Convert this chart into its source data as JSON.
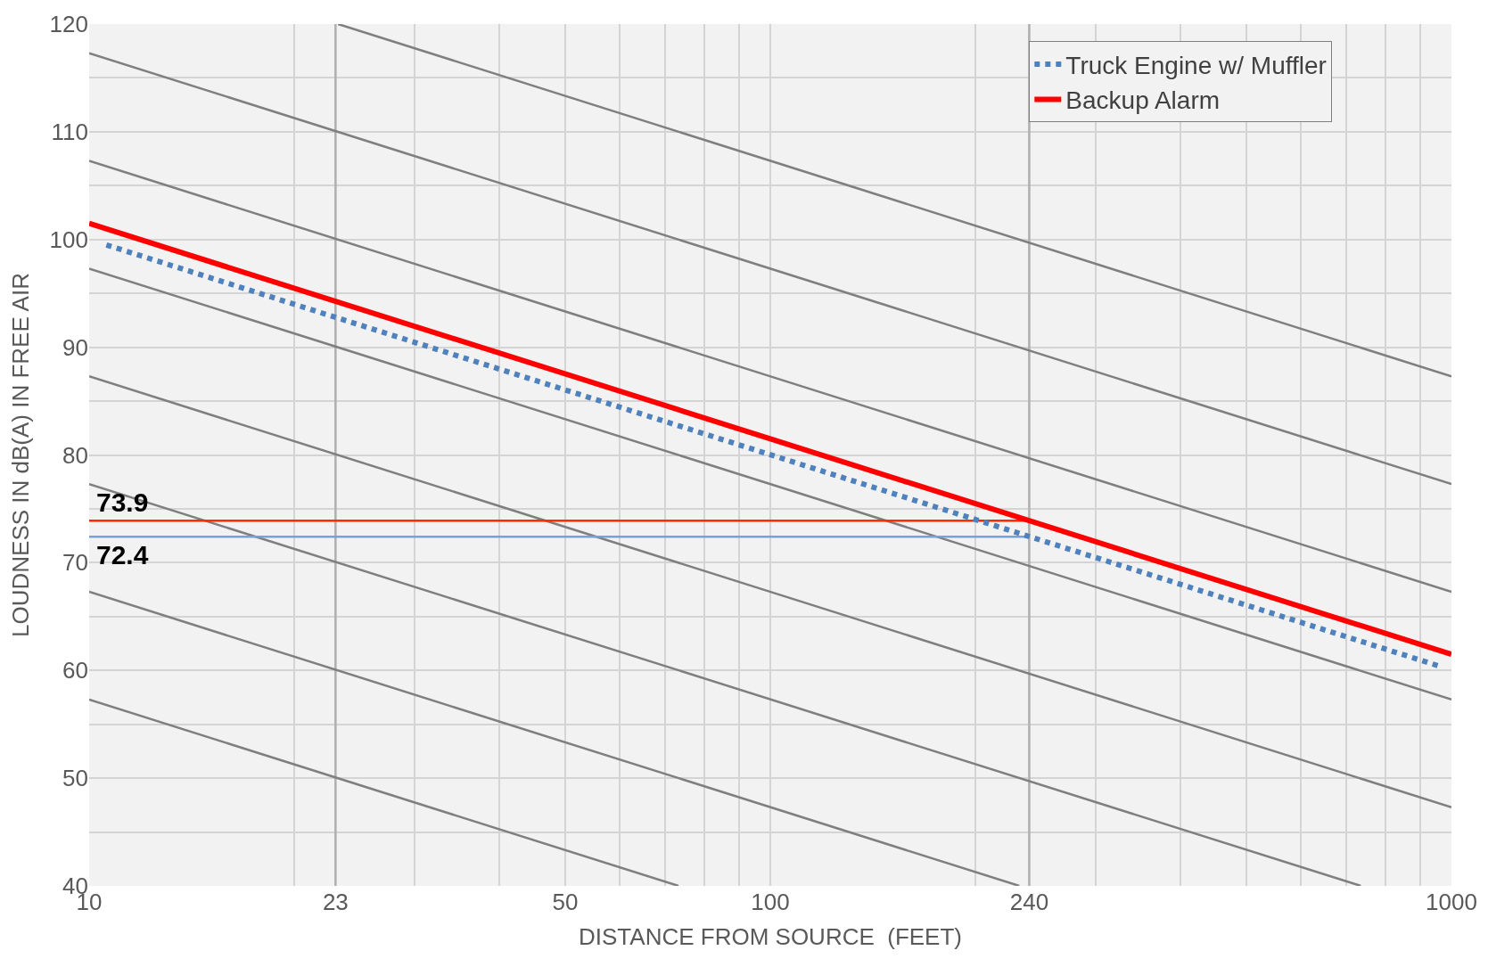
{
  "chart_data": {
    "type": "line",
    "xlabel": "DISTANCE FROM SOURCE  (FEET)",
    "ylabel": "LOUDNESS IN dB(A) IN FREE AIR",
    "log": "x",
    "grid": true,
    "legend": "top right",
    "xlim": [
      10,
      1000
    ],
    "ylim": [
      40,
      120
    ],
    "xticks": [
      10,
      23,
      50,
      100,
      240,
      1000
    ],
    "yticks": [
      40,
      50,
      60,
      70,
      80,
      90,
      100,
      110,
      120
    ],
    "series": [
      {
        "color": "#b0b0b0",
        "x": [
          23,
          23
        ],
        "values": [
          40,
          120
        ]
      },
      {
        "color": "#b0b0b0",
        "x": [
          240,
          240
        ],
        "values": [
          40,
          120
        ]
      },
      {
        "color": "#7f7f7f",
        "x": [
          23.2,
          1000
        ],
        "values": [
          120,
          87.3
        ]
      },
      {
        "color": "#7f7f7f",
        "x": [
          10,
          1000
        ],
        "values": [
          117.3,
          77.3
        ]
      },
      {
        "color": "#7f7f7f",
        "x": [
          10,
          1000
        ],
        "values": [
          107.3,
          67.3
        ]
      },
      {
        "color": "#7f7f7f",
        "x": [
          10,
          1000
        ],
        "values": [
          97.3,
          57.3
        ]
      },
      {
        "color": "#7f7f7f",
        "x": [
          10,
          1000
        ],
        "values": [
          87.3,
          47.3
        ]
      },
      {
        "color": "#7f7f7f",
        "x": [
          10,
          736
        ],
        "values": [
          77.3,
          40
        ]
      },
      {
        "color": "#7f7f7f",
        "x": [
          10,
          232
        ],
        "values": [
          67.3,
          40
        ]
      },
      {
        "color": "#7f7f7f",
        "x": [
          10,
          73.3
        ],
        "values": [
          57.3,
          40
        ]
      },
      {
        "color": "#ff2a00",
        "x": [
          10,
          240
        ],
        "values": [
          73.9,
          73.9
        ]
      },
      {
        "color": "#7aa0d4",
        "x": [
          10,
          240
        ],
        "values": [
          72.4,
          72.4
        ]
      },
      {
        "name": "Truck Engine w/ Muffler",
        "color": "#4f81bd",
        "line_style": "dotted",
        "x": [
          10.6,
          960
        ],
        "values": [
          99.5,
          60.4
        ]
      },
      {
        "name": "Backup Alarm",
        "color": "#ff0000",
        "x": [
          10,
          1000
        ],
        "values": [
          101.5,
          61.5
        ]
      }
    ],
    "annotations": [
      {
        "text": "73.9",
        "x": 10,
        "y": 73.9
      },
      {
        "text": "72.4",
        "x": 10,
        "y": 72.4
      }
    ]
  }
}
